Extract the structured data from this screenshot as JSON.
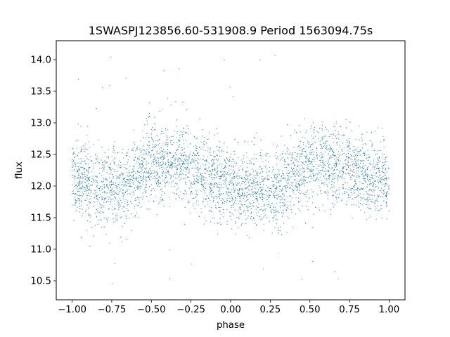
{
  "chart_data": {
    "type": "scatter",
    "title": "1SWASPJ123856.60-531908.9 Period 1563094.75s",
    "xlabel": "phase",
    "ylabel": "flux",
    "xlim": [
      -1.1,
      1.1
    ],
    "ylim": [
      10.2,
      14.3
    ],
    "xticks": [
      -1.0,
      -0.75,
      -0.5,
      -0.25,
      0.0,
      0.25,
      0.5,
      0.75,
      1.0
    ],
    "xtick_labels": [
      "−1.00",
      "−0.75",
      "−0.50",
      "−0.25",
      "0.00",
      "0.25",
      "0.50",
      "0.75",
      "1.00"
    ],
    "yticks": [
      10.5,
      11.0,
      11.5,
      12.0,
      12.5,
      13.0,
      13.5,
      14.0
    ],
    "ytick_labels": [
      "10.5",
      "11.0",
      "11.5",
      "12.0",
      "12.5",
      "13.0",
      "13.5",
      "14.0"
    ],
    "grid": false,
    "marker_color": "#1f77b4",
    "x_range": [
      -1.0,
      1.0
    ],
    "trend": {
      "phase": [
        -1.0,
        -0.85,
        -0.7,
        -0.5,
        -0.35,
        -0.2,
        0.0,
        0.15,
        0.3,
        0.5,
        0.65,
        0.8,
        1.0
      ],
      "flux": [
        12.15,
        12.0,
        11.95,
        12.35,
        12.4,
        12.2,
        12.0,
        11.95,
        11.95,
        12.35,
        12.35,
        12.2,
        12.1
      ]
    },
    "scatter_std": 0.3,
    "outlier_flux_range": [
      10.25,
      14.1
    ]
  }
}
